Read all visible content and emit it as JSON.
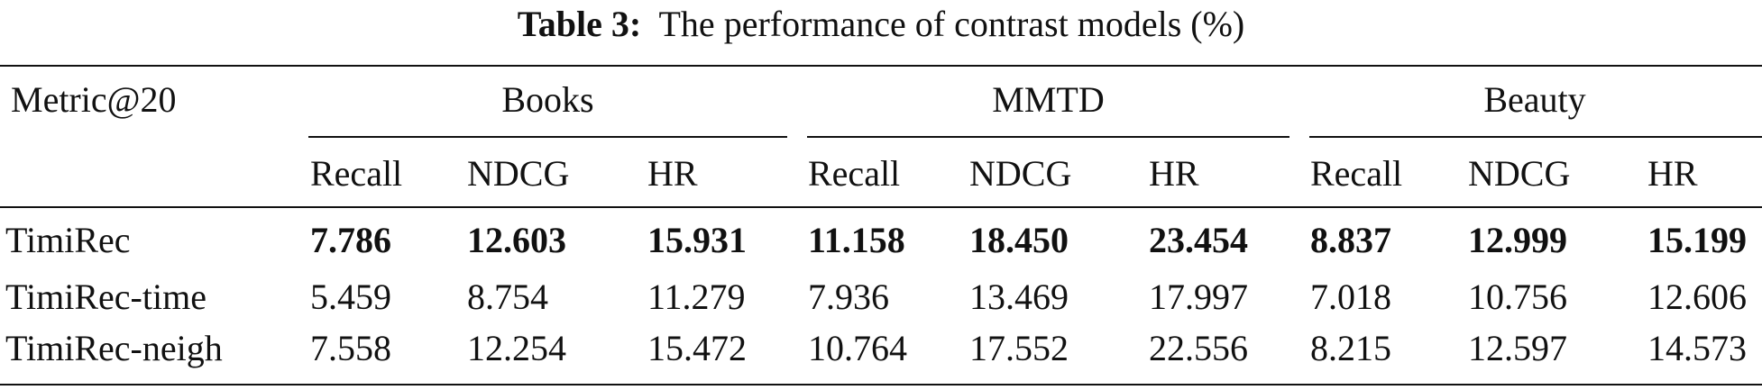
{
  "caption": {
    "label": "Table 3:",
    "text": "The performance of contrast models (%)"
  },
  "header": {
    "metric": "Metric@20",
    "groups": [
      "Books",
      "MMTD",
      "Beauty"
    ],
    "sub": [
      "Recall",
      "NDCG",
      "HR",
      "Recall",
      "NDCG",
      "HR",
      "Recall",
      "NDCG",
      "HR"
    ]
  },
  "rows": [
    {
      "model": "TimiRec",
      "bold": true,
      "values": [
        "7.786",
        "12.603",
        "15.931",
        "11.158",
        "18.450",
        "23.454",
        "8.837",
        "12.999",
        "15.199"
      ]
    },
    {
      "model": "TimiRec-time",
      "bold": false,
      "values": [
        "5.459",
        "8.754",
        "11.279",
        "7.936",
        "13.469",
        "17.997",
        "7.018",
        "10.756",
        "12.606"
      ]
    },
    {
      "model": "TimiRec-neigh",
      "bold": false,
      "values": [
        "7.558",
        "12.254",
        "15.472",
        "10.764",
        "17.552",
        "22.556",
        "8.215",
        "12.597",
        "14.573"
      ]
    }
  ]
}
